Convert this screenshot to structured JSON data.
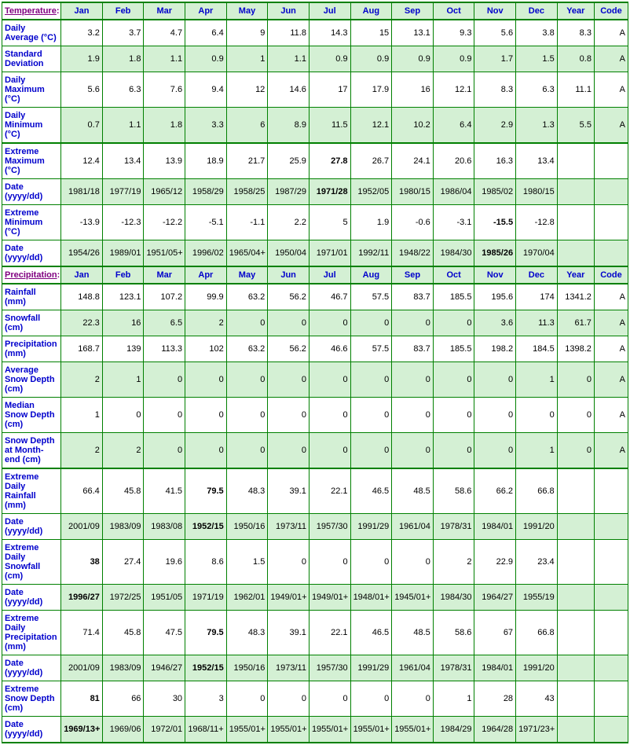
{
  "colors": {
    "border": "#008000",
    "green_bg": "#d4f0d4",
    "white_bg": "#ffffff",
    "link": "#0000cc",
    "section": "#800080"
  },
  "headers": [
    "Jan",
    "Feb",
    "Mar",
    "Apr",
    "May",
    "Jun",
    "Jul",
    "Aug",
    "Sep",
    "Oct",
    "Nov",
    "Dec",
    "Year",
    "Code"
  ],
  "sections": [
    {
      "title": "Temperature:",
      "rows": [
        {
          "label": "Daily Average (°C)",
          "shade": "white",
          "thickTop": true,
          "cells": [
            "3.2",
            "3.7",
            "4.7",
            "6.4",
            "9",
            "11.8",
            "14.3",
            "15",
            "13.1",
            "9.3",
            "5.6",
            "3.8",
            "8.3",
            "A"
          ],
          "bold": []
        },
        {
          "label": "Standard Deviation",
          "shade": "green",
          "cells": [
            "1.9",
            "1.8",
            "1.1",
            "0.9",
            "1",
            "1.1",
            "0.9",
            "0.9",
            "0.9",
            "0.9",
            "1.7",
            "1.5",
            "0.8",
            "A"
          ],
          "bold": []
        },
        {
          "label": "Daily Maximum (°C)",
          "shade": "white",
          "cells": [
            "5.6",
            "6.3",
            "7.6",
            "9.4",
            "12",
            "14.6",
            "17",
            "17.9",
            "16",
            "12.1",
            "8.3",
            "6.3",
            "11.1",
            "A"
          ],
          "bold": []
        },
        {
          "label": "Daily Minimum (°C)",
          "shade": "green",
          "thickBottom": true,
          "cells": [
            "0.7",
            "1.1",
            "1.8",
            "3.3",
            "6",
            "8.9",
            "11.5",
            "12.1",
            "10.2",
            "6.4",
            "2.9",
            "1.3",
            "5.5",
            "A"
          ],
          "bold": []
        },
        {
          "label": "Extreme Maximum (°C)",
          "shade": "white",
          "cells": [
            "12.4",
            "13.4",
            "13.9",
            "18.9",
            "21.7",
            "25.9",
            "27.8",
            "26.7",
            "24.1",
            "20.6",
            "16.3",
            "13.4",
            "",
            ""
          ],
          "bold": [
            6
          ]
        },
        {
          "label": "Date (yyyy/dd)",
          "shade": "green",
          "cells": [
            "1981/18",
            "1977/19",
            "1965/12",
            "1958/29",
            "1958/25",
            "1987/29",
            "1971/28",
            "1952/05",
            "1980/15",
            "1986/04",
            "1985/02",
            "1980/15",
            "",
            ""
          ],
          "bold": [
            6
          ]
        },
        {
          "label": "Extreme Minimum (°C)",
          "shade": "white",
          "cells": [
            "-13.9",
            "-12.3",
            "-12.2",
            "-5.1",
            "-1.1",
            "2.2",
            "5",
            "1.9",
            "-0.6",
            "-3.1",
            "-15.5",
            "-12.8",
            "",
            ""
          ],
          "bold": [
            10
          ]
        },
        {
          "label": "Date (yyyy/dd)",
          "shade": "green",
          "cells": [
            "1954/26",
            "1989/01",
            "1951/05+",
            "1996/02",
            "1965/04+",
            "1950/04",
            "1971/01",
            "1992/11",
            "1948/22",
            "1984/30",
            "1985/26",
            "1970/04",
            "",
            ""
          ],
          "bold": [
            10
          ]
        }
      ]
    },
    {
      "title": "Precipitation:",
      "rows": [
        {
          "label": "Rainfall (mm)",
          "shade": "white",
          "thickTop": true,
          "cells": [
            "148.8",
            "123.1",
            "107.2",
            "99.9",
            "63.2",
            "56.2",
            "46.7",
            "57.5",
            "83.7",
            "185.5",
            "195.6",
            "174",
            "1341.2",
            "A"
          ],
          "bold": []
        },
        {
          "label": "Snowfall (cm)",
          "shade": "green",
          "cells": [
            "22.3",
            "16",
            "6.5",
            "2",
            "0",
            "0",
            "0",
            "0",
            "0",
            "0",
            "3.6",
            "11.3",
            "61.7",
            "A"
          ],
          "bold": []
        },
        {
          "label": "Precipitation (mm)",
          "shade": "white",
          "cells": [
            "168.7",
            "139",
            "113.3",
            "102",
            "63.2",
            "56.2",
            "46.6",
            "57.5",
            "83.7",
            "185.5",
            "198.2",
            "184.5",
            "1398.2",
            "A"
          ],
          "bold": []
        },
        {
          "label": "Average Snow Depth (cm)",
          "shade": "green",
          "cells": [
            "2",
            "1",
            "0",
            "0",
            "0",
            "0",
            "0",
            "0",
            "0",
            "0",
            "0",
            "1",
            "0",
            "A"
          ],
          "bold": []
        },
        {
          "label": "Median Snow Depth (cm)",
          "shade": "white",
          "cells": [
            "1",
            "0",
            "0",
            "0",
            "0",
            "0",
            "0",
            "0",
            "0",
            "0",
            "0",
            "0",
            "0",
            "A"
          ],
          "bold": []
        },
        {
          "label": "Snow Depth at Month-end (cm)",
          "shade": "green",
          "thickBottom": true,
          "cells": [
            "2",
            "2",
            "0",
            "0",
            "0",
            "0",
            "0",
            "0",
            "0",
            "0",
            "0",
            "1",
            "0",
            "A"
          ],
          "bold": []
        },
        {
          "label": "Extreme Daily Rainfall (mm)",
          "shade": "white",
          "cells": [
            "66.4",
            "45.8",
            "41.5",
            "79.5",
            "48.3",
            "39.1",
            "22.1",
            "46.5",
            "48.5",
            "58.6",
            "66.2",
            "66.8",
            "",
            ""
          ],
          "bold": [
            3
          ]
        },
        {
          "label": "Date (yyyy/dd)",
          "shade": "green",
          "cells": [
            "2001/09",
            "1983/09",
            "1983/08",
            "1952/15",
            "1950/16",
            "1973/11",
            "1957/30",
            "1991/29",
            "1961/04",
            "1978/31",
            "1984/01",
            "1991/20",
            "",
            ""
          ],
          "bold": [
            3
          ]
        },
        {
          "label": "Extreme Daily Snowfall (cm)",
          "shade": "white",
          "cells": [
            "38",
            "27.4",
            "19.6",
            "8.6",
            "1.5",
            "0",
            "0",
            "0",
            "0",
            "2",
            "22.9",
            "23.4",
            "",
            ""
          ],
          "bold": [
            0
          ]
        },
        {
          "label": "Date (yyyy/dd)",
          "shade": "green",
          "cells": [
            "1996/27",
            "1972/25",
            "1951/05",
            "1971/19",
            "1962/01",
            "1949/01+",
            "1949/01+",
            "1948/01+",
            "1945/01+",
            "1984/30",
            "1964/27",
            "1955/19",
            "",
            ""
          ],
          "bold": [
            0
          ]
        },
        {
          "label": "Extreme Daily Precipitation (mm)",
          "shade": "white",
          "cells": [
            "71.4",
            "45.8",
            "47.5",
            "79.5",
            "48.3",
            "39.1",
            "22.1",
            "46.5",
            "48.5",
            "58.6",
            "67",
            "66.8",
            "",
            ""
          ],
          "bold": [
            3
          ]
        },
        {
          "label": "Date (yyyy/dd)",
          "shade": "green",
          "cells": [
            "2001/09",
            "1983/09",
            "1946/27",
            "1952/15",
            "1950/16",
            "1973/11",
            "1957/30",
            "1991/29",
            "1961/04",
            "1978/31",
            "1984/01",
            "1991/20",
            "",
            ""
          ],
          "bold": [
            3
          ]
        },
        {
          "label": "Extreme Snow Depth (cm)",
          "shade": "white",
          "cells": [
            "81",
            "66",
            "30",
            "3",
            "0",
            "0",
            "0",
            "0",
            "0",
            "1",
            "28",
            "43",
            "",
            ""
          ],
          "bold": [
            0
          ]
        },
        {
          "label": "Date (yyyy/dd)",
          "shade": "green",
          "thickBottom": true,
          "cells": [
            "1969/13+",
            "1969/06",
            "1972/01",
            "1968/11+",
            "1955/01+",
            "1955/01+",
            "1955/01+",
            "1955/01+",
            "1955/01+",
            "1984/29",
            "1964/28",
            "1971/23+",
            "",
            ""
          ],
          "bold": [
            0
          ]
        }
      ]
    }
  ]
}
